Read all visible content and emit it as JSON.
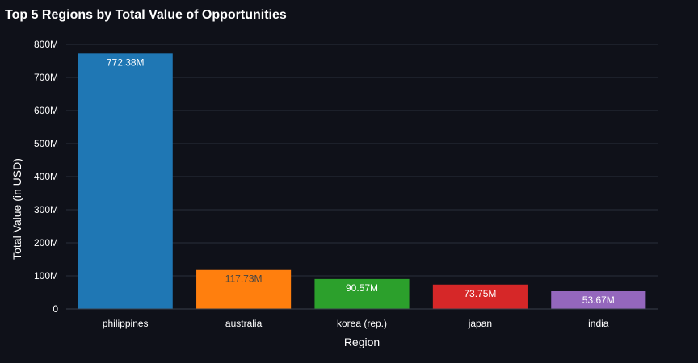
{
  "chart_data": {
    "type": "bar",
    "title": "Top 5 Regions by Total Value of Opportunities",
    "xlabel": "Region",
    "ylabel": "Total Value (in USD)",
    "categories": [
      "philippines",
      "australia",
      "korea (rep.)",
      "japan",
      "india"
    ],
    "values": [
      772.38,
      117.73,
      90.57,
      73.75,
      53.67
    ],
    "value_labels": [
      "772.38M",
      "117.73M",
      "90.57M",
      "73.75M",
      "53.67M"
    ],
    "colors": [
      "#1f77b4",
      "#ff7f0e",
      "#2ca02c",
      "#d62728",
      "#9467bd"
    ],
    "label_colors": [
      "#ffffff",
      "#444444",
      "#ffffff",
      "#ffffff",
      "#ffffff"
    ],
    "ylim": [
      0,
      800
    ],
    "yticks": [
      0,
      100,
      200,
      300,
      400,
      500,
      600,
      700,
      800
    ],
    "ytick_labels": [
      "0",
      "100M",
      "200M",
      "300M",
      "400M",
      "500M",
      "600M",
      "700M",
      "800M"
    ],
    "grid": true,
    "legend": "none"
  }
}
